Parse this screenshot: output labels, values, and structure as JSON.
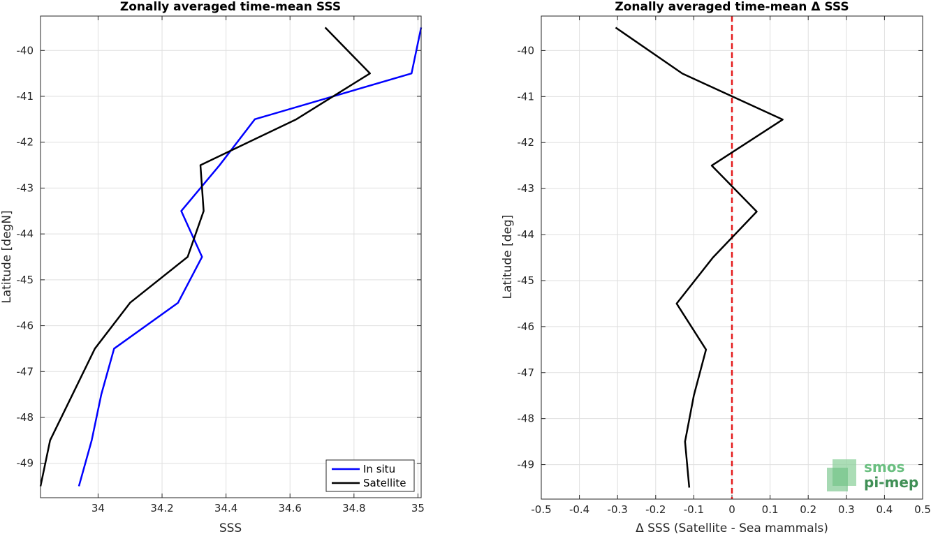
{
  "chart_data": [
    {
      "type": "line",
      "title": "Zonally averaged time-mean SSS",
      "xlabel": "SSS",
      "ylabel": "Latitude [degN]",
      "xlim": [
        33.82,
        35.01
      ],
      "ylim": [
        -49.75,
        -39.25
      ],
      "xticks": [
        34,
        34.2,
        34.4,
        34.6,
        34.8,
        35
      ],
      "xtick_labels": [
        "34",
        "34.2",
        "34.4",
        "34.6",
        "34.8",
        "35"
      ],
      "yticks": [
        -40,
        -41,
        -42,
        -43,
        -44,
        -45,
        -46,
        -47,
        -48,
        -49
      ],
      "ytick_labels": [
        "-40",
        "-41",
        "-42",
        "-43",
        "-44",
        "-45",
        "-46",
        "-47",
        "-48",
        "-49"
      ],
      "grid": true,
      "legend_position": "bottom-right",
      "series": [
        {
          "name": "In situ",
          "color": "#0000ff",
          "y": [
            -39.5,
            -40.5,
            -41.5,
            -42.5,
            -43.5,
            -44.5,
            -45.5,
            -46.5,
            -47.5,
            -48.5,
            -49.5
          ],
          "x": [
            35.01,
            34.98,
            34.49,
            34.38,
            34.26,
            34.325,
            34.25,
            34.05,
            34.01,
            33.98,
            33.94
          ]
        },
        {
          "name": "Satellite",
          "color": "#000000",
          "y": [
            -39.5,
            -40.5,
            -41.5,
            -42.5,
            -43.5,
            -44.5,
            -45.5,
            -46.5,
            -47.5,
            -48.5,
            -49.5
          ],
          "x": [
            34.71,
            34.85,
            34.62,
            34.32,
            34.33,
            34.28,
            34.1,
            33.99,
            33.92,
            33.85,
            33.82
          ]
        }
      ]
    },
    {
      "type": "line",
      "title": "Zonally averaged time-mean Δ SSS",
      "xlabel": "Δ SSS (Satellite - Sea mammals)",
      "ylabel": "Latitude [deg]",
      "xlim": [
        -0.5,
        0.5
      ],
      "ylim": [
        -49.75,
        -39.25
      ],
      "xticks": [
        -0.5,
        -0.4,
        -0.3,
        -0.2,
        -0.1,
        0,
        0.1,
        0.2,
        0.3,
        0.4,
        0.5
      ],
      "xtick_labels": [
        "-0.5",
        "-0.4",
        "-0.3",
        "-0.2",
        "-0.1",
        "0",
        "0.1",
        "0.2",
        "0.3",
        "0.4",
        "0.5"
      ],
      "yticks": [
        -40,
        -41,
        -42,
        -43,
        -44,
        -45,
        -46,
        -47,
        -48,
        -49
      ],
      "ytick_labels": [
        "-40",
        "-41",
        "-42",
        "-43",
        "-44",
        "-45",
        "-46",
        "-47",
        "-48",
        "-49"
      ],
      "grid": true,
      "reference_line": {
        "x": 0,
        "color": "#e41a1c",
        "style": "dashed"
      },
      "series": [
        {
          "color": "#000000",
          "y": [
            -39.5,
            -40.5,
            -41.5,
            -42.5,
            -43.5,
            -44.5,
            -45.5,
            -46.5,
            -47.5,
            -48.5,
            -49.5
          ],
          "x": [
            -0.305,
            -0.13,
            0.133,
            -0.053,
            0.065,
            -0.05,
            -0.145,
            -0.068,
            -0.1,
            -0.123,
            -0.112
          ]
        }
      ]
    }
  ],
  "logo": {
    "line1": "smos",
    "line2": "pi-mep",
    "colors": [
      "#8fd19e",
      "#6abf80",
      "#3f8f55"
    ]
  }
}
